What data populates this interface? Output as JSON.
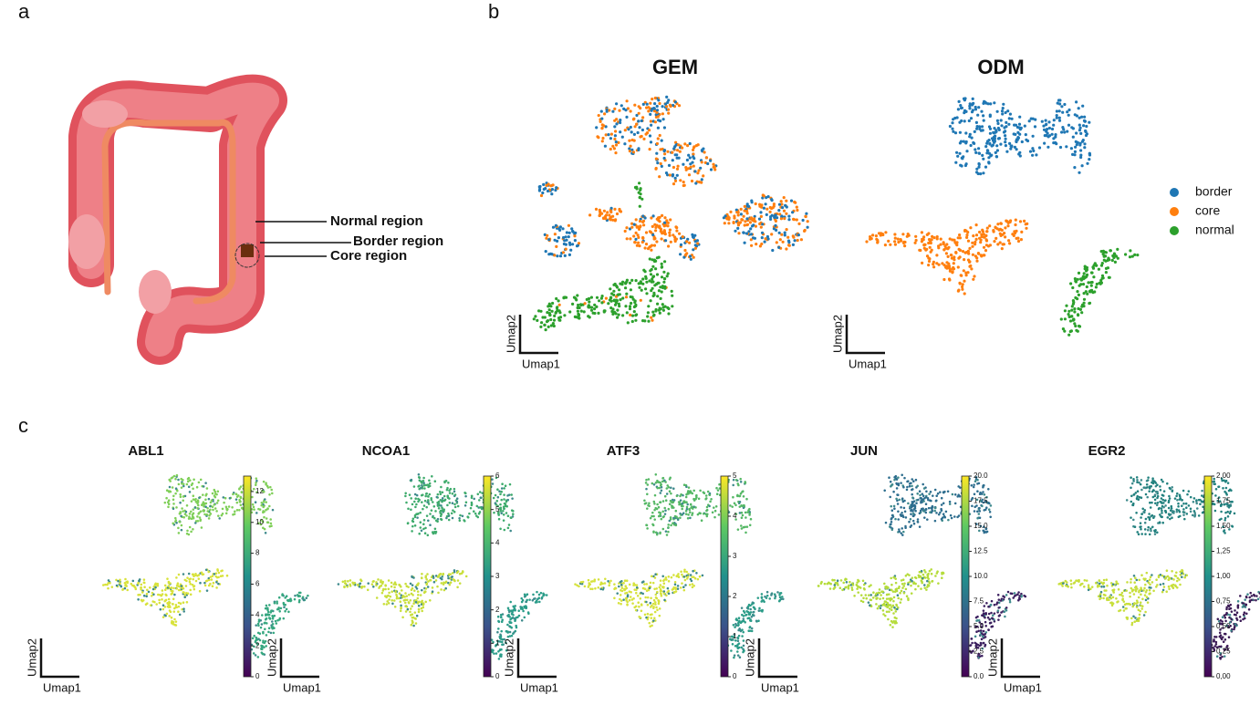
{
  "panel_a": {
    "label": "a",
    "annotations": [
      "Normal region",
      "Border region",
      "Core region"
    ]
  },
  "panel_b": {
    "label": "b",
    "plots": [
      {
        "title": "GEM",
        "x_label": "Umap1",
        "y_label": "Umap2"
      },
      {
        "title": "ODM",
        "x_label": "Umap1",
        "y_label": "Umap2"
      }
    ],
    "legend": [
      {
        "name": "border",
        "color": "#1f77b4"
      },
      {
        "name": "core",
        "color": "#ff7f0e"
      },
      {
        "name": "normal",
        "color": "#2ca02c"
      }
    ]
  },
  "panel_c": {
    "label": "c",
    "plots": [
      {
        "title": "ABL1",
        "x_label": "Umap1",
        "y_label": "Umap2",
        "cluster_colors": [
          "#7fcf58",
          "#d8e23a",
          "#35a77f"
        ],
        "colorbar": {
          "lim": [
            0,
            13
          ],
          "ticks": [
            0,
            2,
            4,
            6,
            8,
            10,
            12
          ]
        }
      },
      {
        "title": "NCOA1",
        "x_label": "Umap1",
        "y_label": "Umap2",
        "cluster_colors": [
          "#3eab6c",
          "#c9df3b",
          "#2a9c89"
        ],
        "colorbar": {
          "lim": [
            0,
            6
          ],
          "ticks": [
            0,
            1,
            2,
            3,
            4,
            5,
            6
          ]
        }
      },
      {
        "title": "ATF3",
        "x_label": "Umap1",
        "y_label": "Umap2",
        "cluster_colors": [
          "#55b865",
          "#d6e23c",
          "#2b9c88"
        ],
        "colorbar": {
          "lim": [
            0,
            5
          ],
          "ticks": [
            0,
            1,
            2,
            3,
            4,
            5
          ]
        }
      },
      {
        "title": "JUN",
        "x_label": "Umap1",
        "y_label": "Umap2",
        "cluster_colors": [
          "#2d6d8e",
          "#b5dc3a",
          "#3b1f5e"
        ],
        "colorbar": {
          "lim": [
            0,
            20
          ],
          "ticks": [
            {
              "value": 0,
              "label": "0.0"
            },
            {
              "value": 2.5,
              "label": "2.5"
            },
            {
              "value": 5,
              "label": "5.0"
            },
            {
              "value": 7.5,
              "label": "7.5"
            },
            {
              "value": 10,
              "label": "10.0"
            },
            {
              "value": 12.5,
              "label": "12.5"
            },
            {
              "value": 15,
              "label": "15.0"
            },
            {
              "value": 17.5,
              "label": "17.5"
            },
            {
              "value": 20,
              "label": "20.0"
            }
          ]
        }
      },
      {
        "title": "EGR2",
        "x_label": "Umap1",
        "y_label": "Umap2",
        "cluster_colors": [
          "#21807e",
          "#c8df3c",
          "#3b1a55"
        ],
        "colorbar": {
          "lim": [
            0,
            2
          ],
          "ticks": [
            {
              "value": 0,
              "label": "0,00"
            },
            {
              "value": 0.25,
              "label": "0,25"
            },
            {
              "value": 0.5,
              "label": "0,50"
            },
            {
              "value": 0.75,
              "label": "0,75"
            },
            {
              "value": 1,
              "label": "1,00"
            },
            {
              "value": 1.25,
              "label": "1,25"
            },
            {
              "value": 1.5,
              "label": "1,50"
            },
            {
              "value": 1.75,
              "label": "1,75"
            },
            {
              "value": 2,
              "label": "2,00"
            }
          ]
        }
      }
    ]
  }
}
